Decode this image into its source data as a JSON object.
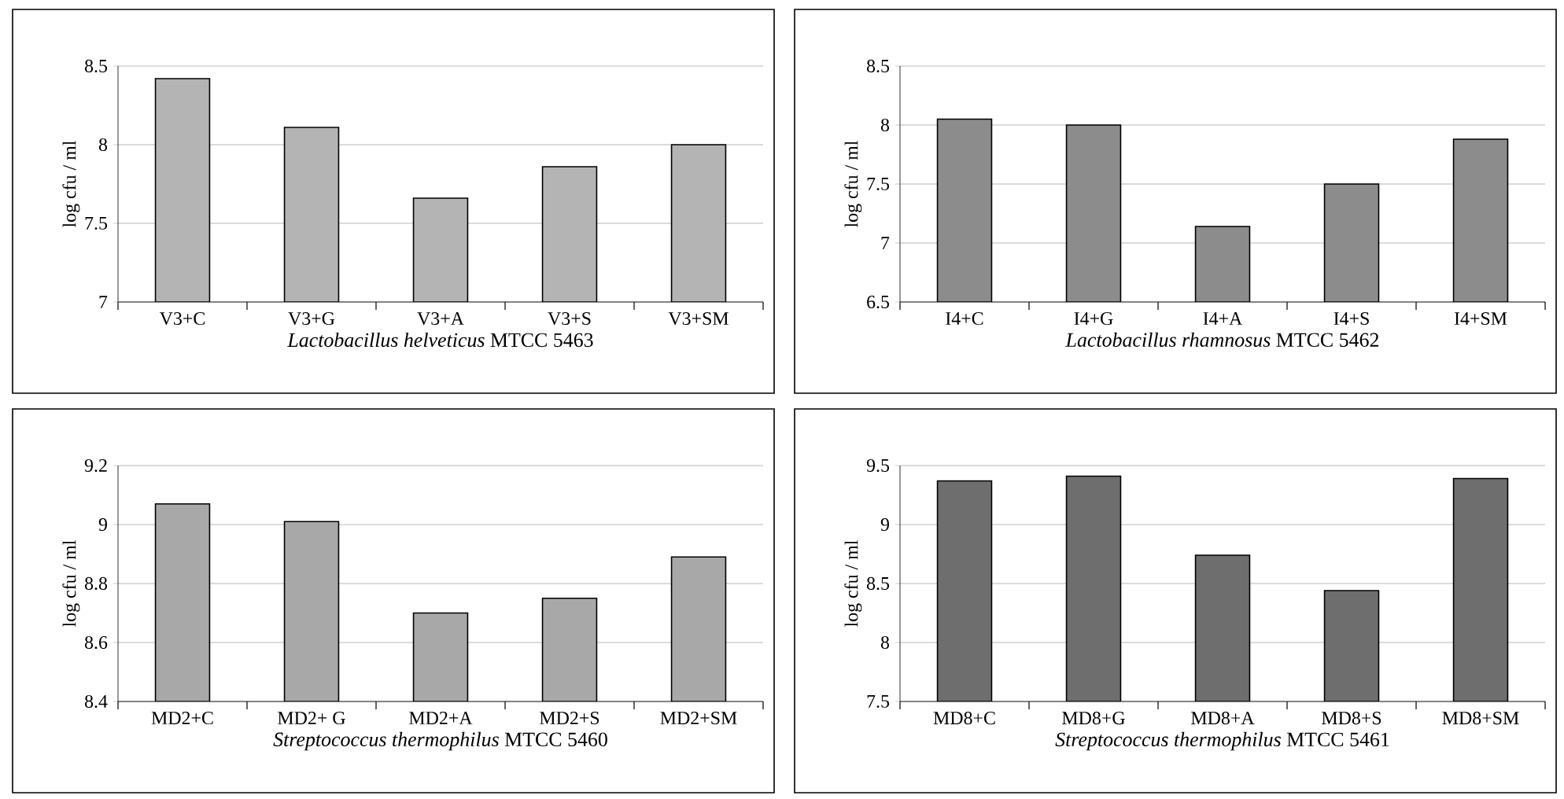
{
  "chart_data": [
    {
      "type": "bar",
      "xlabel": "*Lactobacillus helveticus* MTCC 5463",
      "ylabel": "log cfu / ml",
      "categories": [
        "V3+C",
        "V3+G",
        "V3+A",
        "V3+S",
        "V3+SM"
      ],
      "values": [
        8.42,
        8.11,
        7.66,
        7.86,
        8.0
      ],
      "color": "#b4b4b4",
      "ylim": [
        7,
        8.5
      ],
      "yticks": [
        7,
        7.5,
        8,
        8.5
      ],
      "grid": "y"
    },
    {
      "type": "bar",
      "xlabel": "*Lactobacillus rhamnosus* MTCC 5462",
      "ylabel": "log cfu / ml",
      "categories": [
        "I4+C",
        "I4+G",
        "I4+A",
        "I4+S",
        "I4+SM"
      ],
      "values": [
        8.05,
        8.0,
        7.14,
        7.5,
        7.88
      ],
      "color": "#8c8c8c",
      "ylim": [
        6.5,
        8.5
      ],
      "yticks": [
        6.5,
        7,
        7.5,
        8,
        8.5
      ],
      "grid": "y"
    },
    {
      "type": "bar",
      "xlabel": "*Streptococcus thermophilus* MTCC 5460",
      "ylabel": "log cfu / ml",
      "categories": [
        "MD2+C",
        "MD2+ G",
        "MD2+A",
        "MD2+S",
        "MD2+SM"
      ],
      "values": [
        9.07,
        9.01,
        8.7,
        8.75,
        8.89
      ],
      "color": "#a8a8a8",
      "ylim": [
        8.4,
        9.2
      ],
      "yticks": [
        8.4,
        8.6,
        8.8,
        9,
        9.2
      ],
      "grid": "y"
    },
    {
      "type": "bar",
      "xlabel": "*Streptococcus thermophilus* MTCC 5461",
      "ylabel": "log cfu / ml",
      "categories": [
        "MD8+C",
        "MD8+G",
        "MD8+A",
        "MD8+S",
        "MD8+SM"
      ],
      "values": [
        9.37,
        9.41,
        8.74,
        8.44,
        9.39
      ],
      "color": "#6e6e6e",
      "ylim": [
        7.5,
        9.5
      ],
      "yticks": [
        7.5,
        8,
        8.5,
        9,
        9.5
      ],
      "grid": "y"
    }
  ]
}
